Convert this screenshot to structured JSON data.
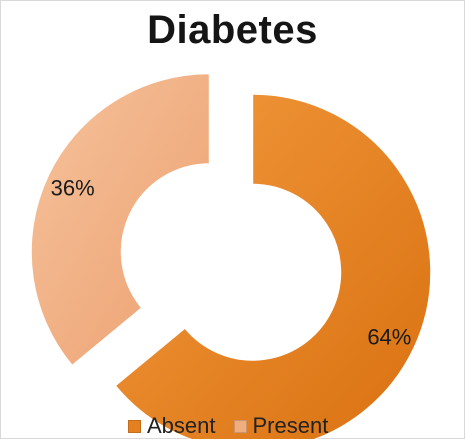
{
  "chart_data": {
    "type": "pie",
    "title": "Diabetes",
    "categories": [
      "Absent",
      "Present"
    ],
    "values": [
      64,
      36
    ],
    "labels": [
      "64%",
      "36%"
    ],
    "legend_position": "bottom",
    "colors": {
      "Absent": "#e57f1f",
      "Present": "#f0ae7f"
    }
  }
}
